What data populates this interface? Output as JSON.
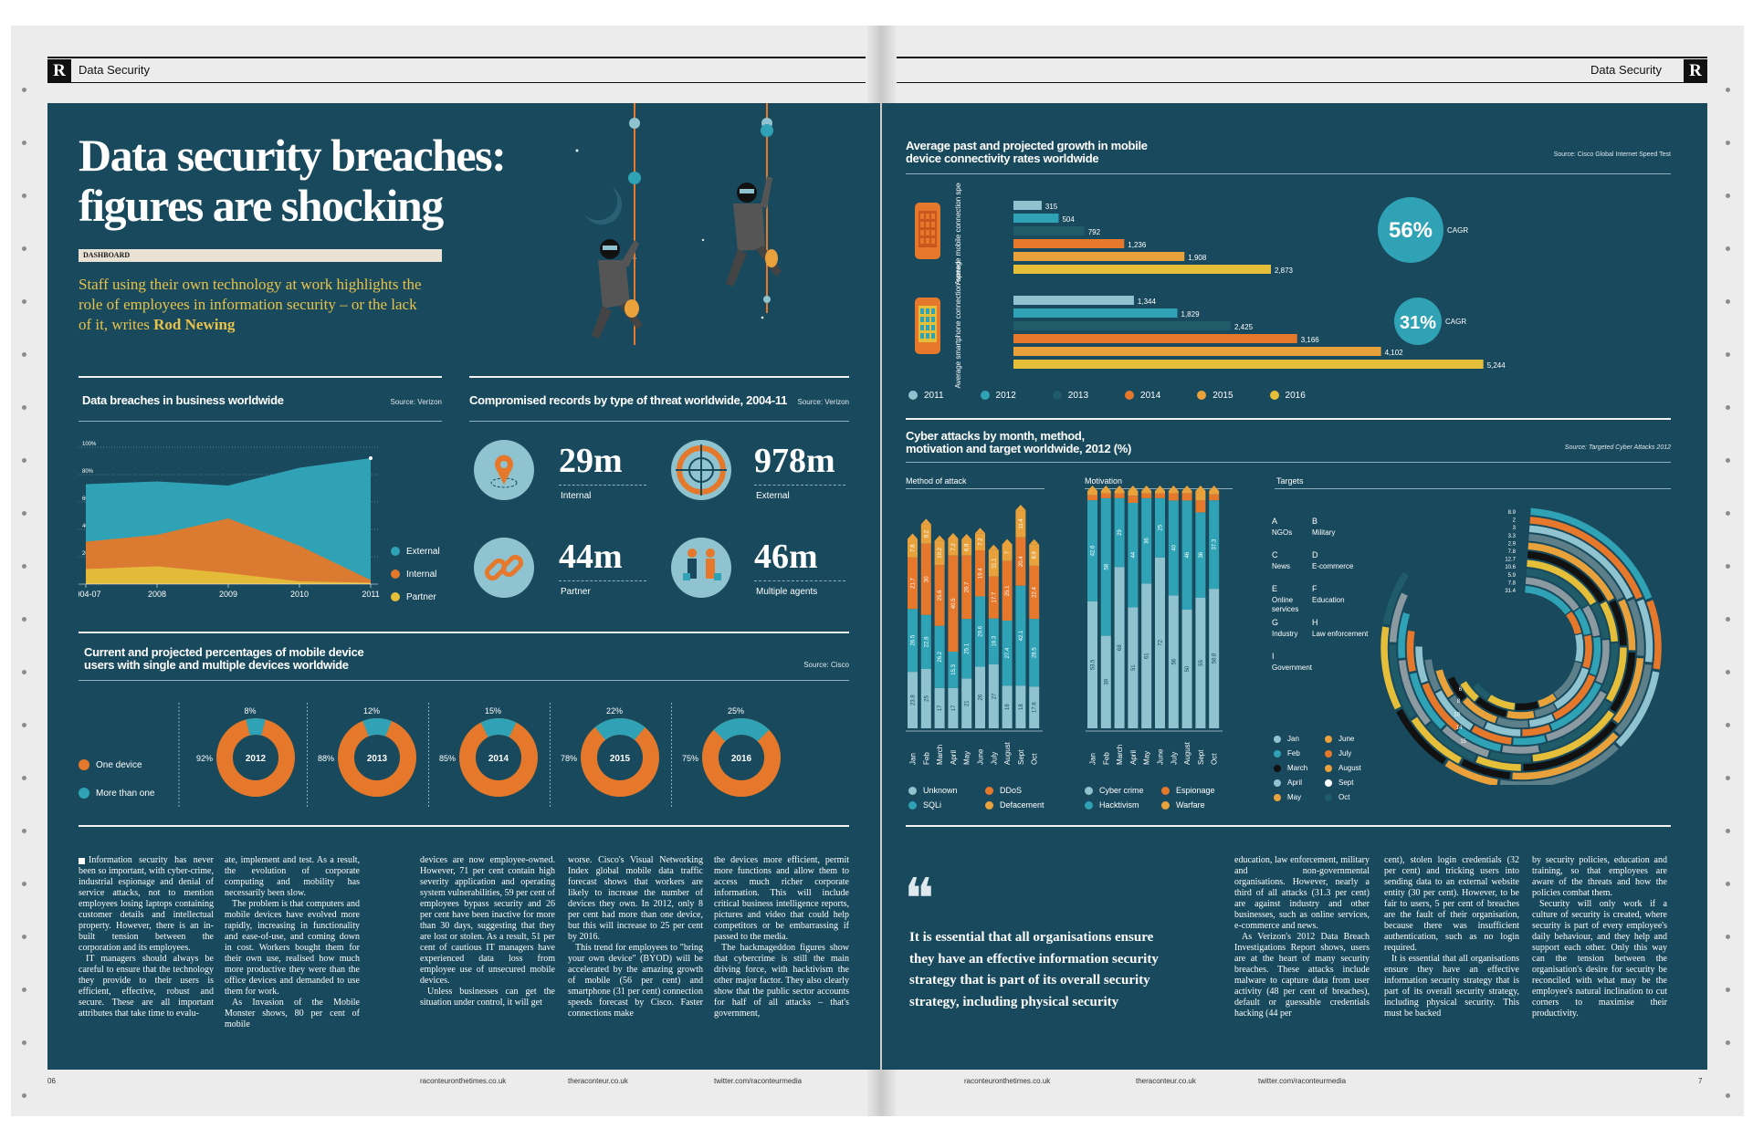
{
  "spread": {
    "section": "Data Security",
    "logo_glyph": "R",
    "page_left": "06",
    "page_right": "7",
    "footer_links": [
      "raconteuronthetimes.co.uk",
      "theraconteur.co.uk",
      "twitter.com/raconteurmedia",
      "raconteuronthetimes.co.uk",
      "theraconteur.co.uk",
      "twitter.com/raconteurmedia"
    ]
  },
  "headline": {
    "title_line1": "Data security breaches:",
    "title_line2": "figures are shocking",
    "kicker": "DASHBOARD",
    "standfirst_1": "Staff using their own technology at work highlights the",
    "standfirst_2": "role of employees in information security – or the lack",
    "standfirst_3": "of it, writes",
    "author": "Rod Newing"
  },
  "colors": {
    "panel": "#18495c",
    "teal": "#2fa3b5",
    "light_blue": "#8ec3cf",
    "dark_teal": "#1f5b69",
    "orange": "#e5782a",
    "amber": "#e9a23b",
    "yellow": "#e5be3a",
    "black": "#111111"
  },
  "chart_data": [
    {
      "type": "area",
      "title": "Data breaches in business worldwide",
      "source": "Source: Verizon",
      "categories": [
        "2004-07",
        "2008",
        "2009",
        "2010",
        "2011"
      ],
      "y_ticks": [
        "100%",
        "80%",
        "60%",
        "40%",
        "20%"
      ],
      "ylim": [
        0,
        100
      ],
      "series": [
        {
          "name": "External",
          "values": [
            73,
            75,
            72,
            85,
            92
          ]
        },
        {
          "name": "Internal",
          "values": [
            31,
            36,
            48,
            28,
            3
          ]
        },
        {
          "name": "Partner",
          "values": [
            11,
            13,
            8,
            2,
            1
          ]
        }
      ]
    },
    {
      "type": "table",
      "title": "Compromised records by type of threat worldwide, 2004-11",
      "source": "Source: Verizon",
      "items": [
        {
          "value": "29m",
          "label": "Internal",
          "icon": "location-pin-icon"
        },
        {
          "value": "978m",
          "label": "External",
          "icon": "crosshair-icon"
        },
        {
          "value": "44m",
          "label": "Partner",
          "icon": "chain-link-icon"
        },
        {
          "value": "46m",
          "label": "Multiple agents",
          "icon": "people-icon"
        }
      ]
    },
    {
      "type": "pie",
      "title": "Current and projected percentages of mobile device users with single and multiple devices worldwide",
      "source": "Source: Cisco",
      "legend": [
        "One device",
        "More than one"
      ],
      "donuts": [
        {
          "year": "2012",
          "one": "92%",
          "more": "8%",
          "more_value": 8
        },
        {
          "year": "2013",
          "one": "88%",
          "more": "12%",
          "more_value": 12
        },
        {
          "year": "2014",
          "one": "85%",
          "more": "15%",
          "more_value": 15
        },
        {
          "year": "2015",
          "one": "78%",
          "more": "22%",
          "more_value": 22
        },
        {
          "year": "2016",
          "one": "75%",
          "more": "25%",
          "more_value": 25
        }
      ]
    },
    {
      "type": "bar",
      "title": "Average past and projected growth in mobile device connectivity rates worldwide",
      "source": "Source: Cisco Global Internet Speed Test",
      "legend": [
        "2011",
        "2012",
        "2013",
        "2014",
        "2015",
        "2016"
      ],
      "groups": [
        {
          "label": "Average mobile connection speed",
          "values": [
            315,
            504,
            792,
            1236,
            1908,
            2873
          ],
          "labels": [
            "315",
            "504",
            "792",
            "1,236",
            "1,908",
            "2,873"
          ],
          "cagr": "56%"
        },
        {
          "label": "Average smartphone connection speed",
          "values": [
            1344,
            1829,
            2425,
            3166,
            4102,
            5244
          ],
          "labels": [
            "1,344",
            "1,829",
            "2,425",
            "3,166",
            "4,102",
            "5,244"
          ],
          "cagr": "31%"
        }
      ],
      "cagr_label": "CAGR",
      "xlim": [
        0,
        5400
      ]
    },
    {
      "type": "bar",
      "title": "Cyber attacks by month, method, motivation and target worldwide, 2012 (%)",
      "source": "Source: Targeted Cyber Attacks 2012",
      "months": [
        "Jan",
        "Feb",
        "March",
        "April",
        "May",
        "June",
        "July",
        "August",
        "Sept",
        "Oct"
      ],
      "method": {
        "label": "Method of attack",
        "legend": [
          "Unknown",
          "SQLi",
          "DDoS",
          "Defacement"
        ],
        "rows": [
          {
            "unknown": 23.8,
            "sqli": 26.5,
            "ddos": 21.7,
            "deface": 7.8
          },
          {
            "unknown": 25,
            "sqli": 22.8,
            "ddos": 30,
            "deface": 8.2
          },
          {
            "unknown": 17,
            "sqli": 26.2,
            "ddos": 25.6,
            "deface": 10.2
          },
          {
            "unknown": 17,
            "sqli": 15.3,
            "ddos": 40.5,
            "deface": 7.2
          },
          {
            "unknown": 21,
            "sqli": 25.1,
            "ddos": 26.7,
            "deface": 6.8
          },
          {
            "unknown": 26,
            "sqli": 29.6,
            "ddos": 19.4,
            "deface": 7.2
          },
          {
            "unknown": 27,
            "sqli": 19.3,
            "ddos": 17.7,
            "deface": 11.1
          },
          {
            "unknown": 18,
            "sqli": 27.4,
            "ddos": 25.1,
            "deface": 7
          },
          {
            "unknown": 18,
            "sqli": 42.1,
            "ddos": 20.4,
            "deface": 11.4
          },
          {
            "unknown": 17.6,
            "sqli": 28.5,
            "ddos": 22.4,
            "deface": 8.9
          }
        ]
      },
      "motivation": {
        "label": "Motivation",
        "legend": [
          "Cyber crime",
          "Hacktivism",
          "Espionage",
          "Warfare"
        ],
        "rows": [
          {
            "crime": 53.5,
            "hack": 42.6,
            "esp": 2.1,
            "war": 1.8
          },
          {
            "crime": 39,
            "hack": 58,
            "esp": 2,
            "war": 1
          },
          {
            "crime": 68,
            "hack": 29,
            "esp": 2,
            "war": 1
          },
          {
            "crime": 51,
            "hack": 44,
            "esp": 3,
            "war": 2
          },
          {
            "crime": 61,
            "hack": 36,
            "esp": 2,
            "war": 1
          },
          {
            "crime": 72,
            "hack": 25,
            "esp": 2,
            "war": 1
          },
          {
            "crime": 56,
            "hack": 40,
            "esp": 3,
            "war": 1
          },
          {
            "crime": 50,
            "hack": 46,
            "esp": 3,
            "war": 1
          },
          {
            "crime": 55,
            "hack": 36,
            "esp": 5,
            "war": 4
          },
          {
            "crime": 58.8,
            "hack": 37.3,
            "esp": 2.5,
            "war": 1.4
          }
        ]
      },
      "targets": {
        "label": "Targets",
        "keys": [
          {
            "code": "A",
            "name": "NGOs"
          },
          {
            "code": "B",
            "name": "Military"
          },
          {
            "code": "C",
            "name": "News"
          },
          {
            "code": "D",
            "name": "E-commerce"
          },
          {
            "code": "E",
            "name": "Online services"
          },
          {
            "code": "F",
            "name": "Education"
          },
          {
            "code": "G",
            "name": "Industry"
          },
          {
            "code": "H",
            "name": "Law enforcement"
          },
          {
            "code": "I",
            "name": "Government"
          }
        ],
        "ring_values": [
          "8.9",
          "2",
          "3",
          "3.3",
          "2.9",
          "7.8",
          "12.7",
          "10.6",
          "5.9",
          "7.8",
          "31.4",
          "15",
          "14",
          "10",
          "8",
          "6"
        ]
      }
    }
  ],
  "illustration_note_free": true,
  "body": {
    "col1": "Information security has never been so important, with cyber-crime, industrial espionage and denial of service attacks, not to mention employees losing laptops containing customer details and intellectual property. However, there is an in-built tension between the corporation and its employees.",
    "col1b": "IT managers should always be careful to ensure that the technology they provide to their users is efficient, effective, robust and secure. These are all important attributes that take time to evalu-",
    "col2": "ate, implement and test. As a result, the evolution of corporate computing and mobility has necessarily been slow.",
    "col2b": "The problem is that computers and mobile devices have evolved more rapidly, increasing in functionality and ease-of-use, and coming down in cost. Workers bought them for their own use, realised how much more productive they were than the office devices and demanded to use them for work.",
    "col2c": "As Invasion of the Mobile Monster shows, 80 per cent of mobile",
    "col3": "devices are now employee-owned. However, 71 per cent contain high severity application and operating system vulnerabilities, 59 per cent of employees bypass security and 26 per cent have been inactive for more than 30 days, suggesting that they are lost or stolen. As a result, 51 per cent of cautious IT managers have experienced data loss from employee use of unsecured mobile devices.",
    "col3b": "Unless businesses can get the situation under control, it will get",
    "col4": "worse. Cisco's Visual Networking Index global mobile data traffic forecast shows that workers are likely to increase the number of devices they own. In 2012, only 8 per cent had more than one device, but this will increase to 25 per cent by 2016.",
    "col4b": "This trend for employees to \"bring your own device\" (BYOD) will be accelerated by the amazing growth of mobile (56 per cent) and smartphone (31 per cent) connection speeds forecast by Cisco. Faster connections make",
    "col5": "the devices more efficient, permit more functions and allow them to access much richer corporate information. This will include critical business intelligence reports, pictures and video that could help competitors or be embarrassing if passed to the media.",
    "col5b": "The hackmageddon figures show that cybercrime is still the main driving force, with hacktivism the other major factor. They also clearly show that the public sector accounts for half of all attacks – that's government,",
    "quote_mark": "❝",
    "quote": [
      "It is essential that all organisations ensure",
      "they have an effective information security",
      "strategy that is part of its overall security",
      "strategy, including physical security"
    ],
    "col6": "education, law enforcement, military and non-governmental organisations. However, nearly a third of all attacks (31.3 per cent) are against industry and other businesses, such as online services, e-commerce and news.",
    "col6b": "As Verizon's 2012 Data Breach Investigations Report shows, users are at the heart of many security breaches. These attacks include malware to capture data from user activity (48 per cent of breaches), default or guessable credentials hacking (44 per",
    "col7": "cent), stolen login credentials (32 per cent) and tricking users into sending data to an external website entity (30 per cent). However, to be fair to users, 5 per cent of breaches are the fault of their organisation, because there was insufficient authentication, such as no login required.",
    "col7b": "It is essential that all organisations ensure they have an effective information security strategy that is part of its overall security strategy, including physical security. This must be backed",
    "col8": "by security policies, education and training, so that employees are aware of the threats and how the policies combat them.",
    "col8b": "Security will only work if a culture of security is created, where security is part of every employee's daily behaviour, and they help and support each other. Only this way can the tension between the organisation's desire for security be reconciled with what may be the employee's natural inclination to cut corners to maximise their productivity."
  }
}
